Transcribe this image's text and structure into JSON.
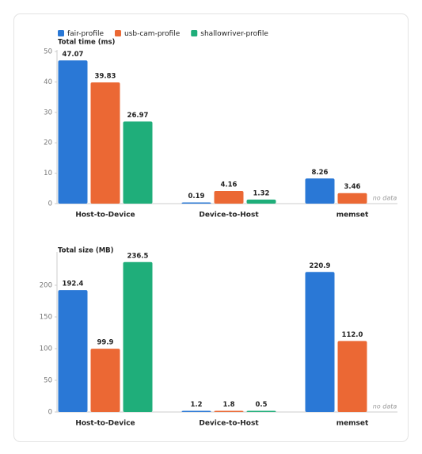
{
  "chart_data": [
    {
      "type": "bar",
      "ylabel": "Total time (ms)",
      "categories": [
        "Host-to-Device",
        "Device-to-Host",
        "memset"
      ],
      "ylim": [
        0,
        50
      ],
      "yticks": [
        0,
        10,
        20,
        30,
        40,
        50
      ],
      "no_data_label": "no data",
      "series": [
        {
          "name": "fair-profile",
          "color": "#2a78d6",
          "values": [
            47.07,
            0.19,
            8.26
          ]
        },
        {
          "name": "usb-cam-profile",
          "color": "#eb6834",
          "values": [
            39.83,
            4.16,
            3.46
          ]
        },
        {
          "name": "shallowriver-profile",
          "color": "#1fae7a",
          "values": [
            26.97,
            1.32,
            null
          ]
        }
      ]
    },
    {
      "type": "bar",
      "ylabel": "Total size (MB)",
      "categories": [
        "Host-to-Device",
        "Device-to-Host",
        "memset"
      ],
      "ylim": [
        0,
        250
      ],
      "yticks": [
        0,
        50,
        100,
        150,
        200
      ],
      "no_data_label": "no data",
      "series": [
        {
          "color": "#2a78d6",
          "values": [
            192.4,
            1.2,
            220.9
          ],
          "value_labels": [
            "192.4",
            "1.2",
            "220.9"
          ]
        },
        {
          "color": "#eb6834",
          "values": [
            99.9,
            1.8,
            112.0
          ],
          "value_labels": [
            "99.9",
            "1.8",
            "112.0"
          ]
        },
        {
          "color": "#1fae7a",
          "values": [
            236.5,
            0.5,
            null
          ],
          "value_labels": [
            "236.5",
            "0.5",
            null
          ]
        }
      ]
    }
  ]
}
